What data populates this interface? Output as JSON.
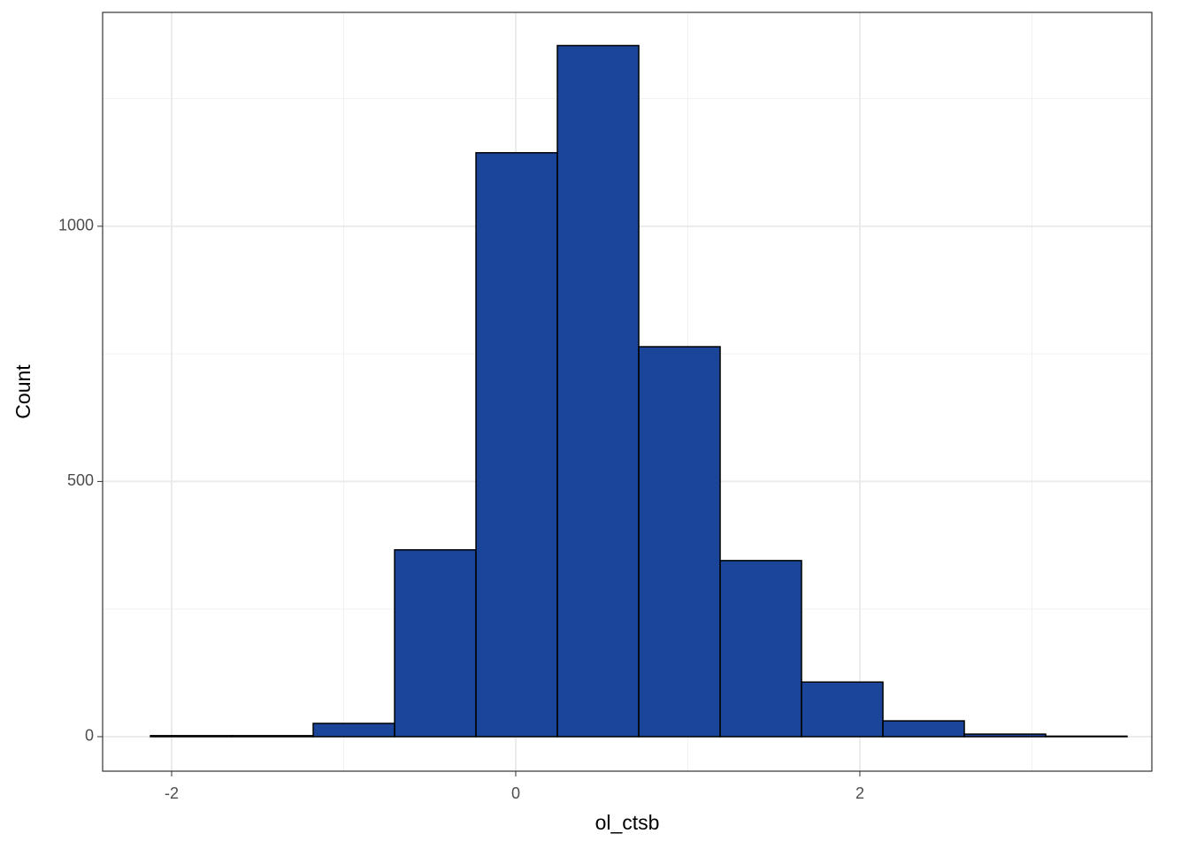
{
  "chart_data": {
    "type": "histogram",
    "xlabel": "ol_ctsb",
    "ylabel": "Count",
    "bins": [
      -2.123,
      -1.65,
      -1.177,
      -0.704,
      -0.231,
      0.242,
      0.715,
      1.188,
      1.661,
      2.134,
      2.607,
      3.08,
      3.553
    ],
    "values": [
      2,
      2,
      26,
      366,
      1144,
      1354,
      764,
      345,
      107,
      31,
      5,
      1
    ],
    "color": "#1a4599",
    "edgecolor": "#000000",
    "xlim": [
      -2.401,
      3.697
    ],
    "ylim": [
      -67.6,
      1419
    ],
    "xticks": [
      -2,
      0,
      2
    ],
    "yticks": [
      0,
      500,
      1000
    ],
    "xminor": [
      -1,
      1,
      3
    ],
    "yminor": [
      250,
      750,
      1250
    ],
    "grid": true
  }
}
